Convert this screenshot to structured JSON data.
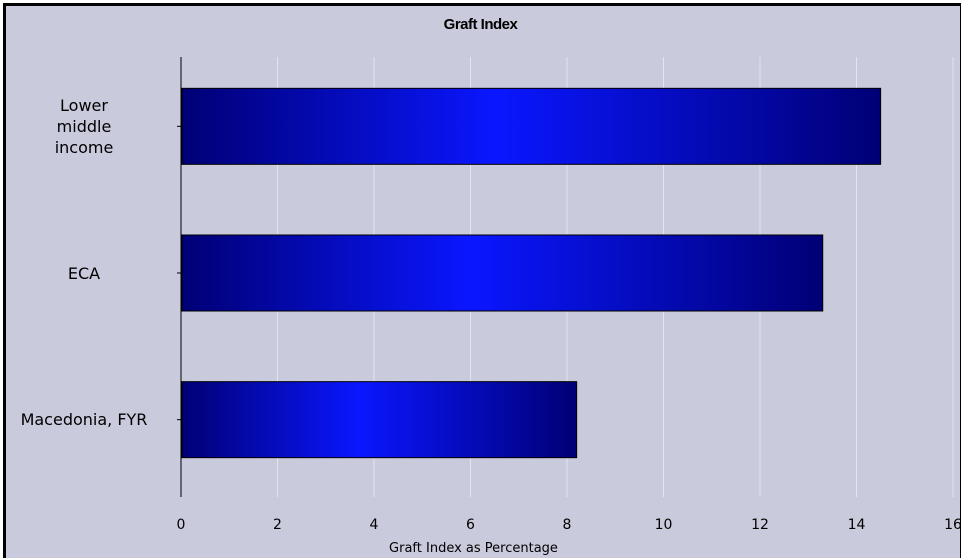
{
  "chart_data": {
    "type": "bar",
    "orientation": "horizontal",
    "title": "Graft Index",
    "xlabel": "Graft Index as Percentage",
    "ylabel": "",
    "categories": [
      "Lower\nmiddle\nincome",
      "ECA",
      "Macedonia, FYR"
    ],
    "values": [
      14.5,
      13.3,
      8.2
    ],
    "xlim": [
      0,
      16
    ],
    "xticks": [
      "0",
      "2",
      "4",
      "6",
      "8",
      "10",
      "12",
      "14",
      "16"
    ],
    "grid": "vertical",
    "legend": "none",
    "colors": {
      "background": "#c9cadc",
      "bar_dark": "#000075",
      "bar_light": "#0a16ff",
      "gridline": "#e4e4ec"
    }
  }
}
